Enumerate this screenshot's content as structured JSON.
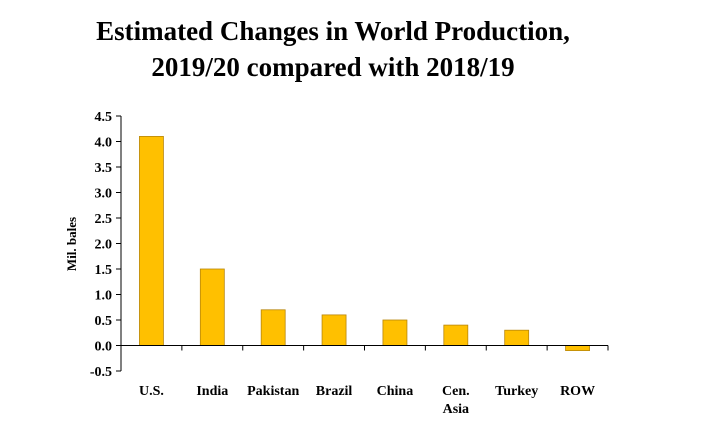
{
  "chart_data": {
    "type": "bar",
    "title": [
      "Estimated Changes in World Production,",
      "2019/20 compared with 2018/19"
    ],
    "ylabel": "Mil. bales",
    "xlabel": "",
    "categories": [
      [
        "U.S."
      ],
      [
        "India"
      ],
      [
        "Pakistan"
      ],
      [
        "Brazil"
      ],
      [
        "China"
      ],
      [
        "Cen.",
        "Asia"
      ],
      [
        "Turkey"
      ],
      [
        "ROW"
      ]
    ],
    "values": [
      4.1,
      1.5,
      0.7,
      0.6,
      0.5,
      0.4,
      0.3,
      -0.1
    ],
    "ylim": [
      -0.5,
      4.5
    ],
    "yticks": [
      -0.5,
      0.0,
      0.5,
      1.0,
      1.5,
      2.0,
      2.5,
      3.0,
      3.5,
      4.0,
      4.5
    ],
    "ytick_labels": [
      "-0.5",
      "0.0",
      "0.5",
      "1.0",
      "1.5",
      "2.0",
      "2.5",
      "3.0",
      "3.5",
      "4.0",
      "4.5"
    ],
    "grid": false,
    "legend": "none",
    "bar_color": "#FFC000",
    "bar_edge_color": "#B8860B",
    "axis_color": "#000000"
  }
}
